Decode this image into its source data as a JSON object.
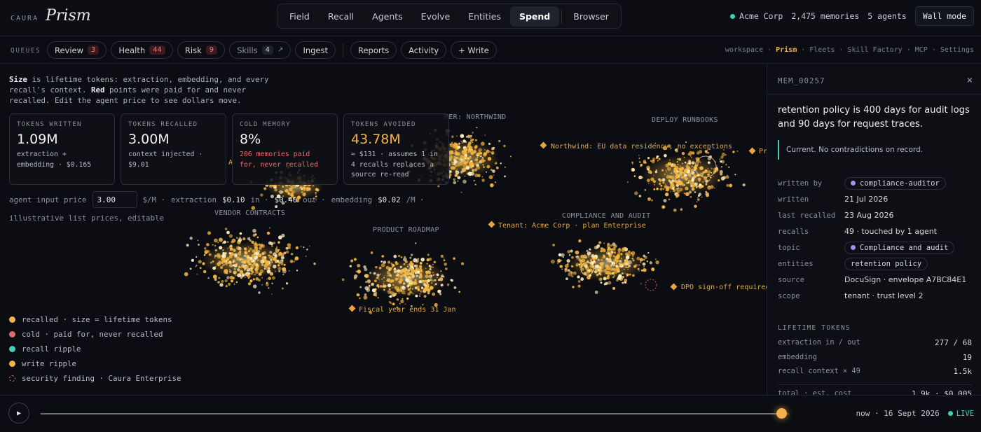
{
  "brand": {
    "caura": "CAURA",
    "prism": "Prism"
  },
  "nav": {
    "tabs": [
      "Field",
      "Recall",
      "Agents",
      "Evolve",
      "Entities",
      "Spend"
    ],
    "active": "Spend",
    "browser": "Browser"
  },
  "workspace": {
    "org": "Acme Corp",
    "memories": "2,475 memories",
    "agents": "5 agents",
    "wall_mode": "Wall mode",
    "status_color": "#3fd0b5"
  },
  "queues": {
    "label": "QUEUES",
    "chips": [
      {
        "label": "Review",
        "count": "3"
      },
      {
        "label": "Health",
        "count": "44"
      },
      {
        "label": "Risk",
        "count": "9"
      },
      {
        "label": "Skills",
        "count": "4",
        "arrow": "↗"
      },
      {
        "label": "Ingest"
      }
    ],
    "chips2": [
      "Reports",
      "Activity",
      "+ Write"
    ]
  },
  "crumbs": [
    "workspace",
    "Prism",
    "Fleets",
    "Skill Factory",
    "MCP",
    "Settings"
  ],
  "crumb_sep": "·",
  "intro": {
    "b1": "Size",
    "t1": " is lifetime tokens: extraction, embedding, and every recall's context. ",
    "b2": "Red",
    "t2": " points were paid for and never recalled. Edit the agent price to see dollars move."
  },
  "cards": [
    {
      "title": "TOKENS WRITTEN",
      "value": "1.09M",
      "sub": "extraction + embedding · $0.165"
    },
    {
      "title": "TOKENS RECALLED",
      "value": "3.00M",
      "sub": "context injected · $9.01"
    },
    {
      "title": "COLD MEMORY",
      "value": "8%",
      "sub": "206 memories paid for, never recalled"
    },
    {
      "title": "TOKENS AVOIDED",
      "value": "43.78M",
      "sub": "≈ $131 · assumes 1 in 4 recalls replaces a source re-read"
    }
  ],
  "price": {
    "label": "agent input price",
    "value": "3.00",
    "unit": "$/M ·",
    "extraction_label": "extraction",
    "extraction": "$0.10",
    "in": "in ·",
    "out": "$0.40",
    "out_label": "out ·",
    "embedding_label": "embedding",
    "embedding": "$0.02",
    "embedding_unit": "/M ·",
    "note": "illustrative list prices, editable"
  },
  "clusters": [
    {
      "name": "CUSTOMER: NORTHWIND",
      "shown": "MER: NORTHWIND"
    },
    {
      "name": "DEPLOY RUNBOOKS"
    },
    {
      "name": "VENDOR CONTRACTS"
    },
    {
      "name": "PRODUCT ROADMAP"
    },
    {
      "name": "COMPLIANCE AND AUDIT"
    }
  ],
  "entities": [
    "Northwind: EU data residency, no exceptions",
    "Tenant: Acme Corp · plan Enterprise",
    "DPO sign-off required",
    "Fiscal year ends 31 Jan",
    "A",
    "Pr"
  ],
  "legend": [
    {
      "label": "recalled · size = lifetime tokens",
      "color": "#f5b24a"
    },
    {
      "label": "cold · paid for, never recalled",
      "color": "#e26a6a"
    },
    {
      "label": "recall ripple",
      "color": "#3fd0b5"
    },
    {
      "label": "write ripple",
      "color": "#f5b24a"
    },
    {
      "label": "security finding · Caura Enterprise",
      "color": "#e26a6a"
    }
  ],
  "panel": {
    "id": "MEM_00257",
    "close": "×",
    "title": "retention policy is 400 days for audit logs and 90 days for request traces.",
    "note": "Current. No contradictions on record.",
    "props": {
      "written_by": {
        "k": "written by",
        "v": "compliance-auditor"
      },
      "written": {
        "k": "written",
        "v": "21 Jul 2026"
      },
      "last_recalled": {
        "k": "last recalled",
        "v": "23 Aug 2026"
      },
      "recalls": {
        "k": "recalls",
        "v": "49 · touched by 1 agent"
      },
      "topic": {
        "k": "topic",
        "v": "Compliance and audit"
      },
      "entities": {
        "k": "entities",
        "v": "retention policy"
      },
      "source": {
        "k": "source",
        "v": "DocuSign · envelope A7BC84E1"
      },
      "scope": {
        "k": "scope",
        "v": "tenant · trust level 2"
      }
    },
    "lifetime": {
      "heading": "LIFETIME TOKENS",
      "rows": [
        {
          "k": "extraction in / out",
          "v": "277 / 68"
        },
        {
          "k": "embedding",
          "v": "19"
        },
        {
          "k": "recall context × 49",
          "v": "1.5k"
        },
        {
          "k": "total · est. cost",
          "v": "1.9k · $0.005"
        }
      ]
    }
  },
  "timeline": {
    "play": "▶",
    "now": "now · 16 Sept 2026",
    "live": "LIVE",
    "progress": 0.99
  }
}
